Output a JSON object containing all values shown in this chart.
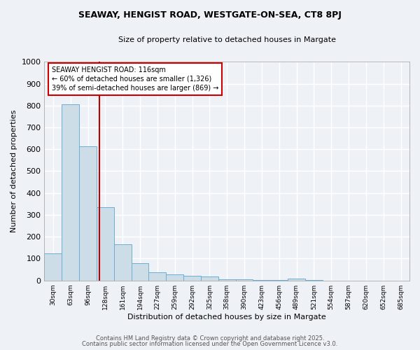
{
  "title1": "SEAWAY, HENGIST ROAD, WESTGATE-ON-SEA, CT8 8PJ",
  "title2": "Size of property relative to detached houses in Margate",
  "xlabel": "Distribution of detached houses by size in Margate",
  "ylabel": "Number of detached properties",
  "bar_color": "#ccdde8",
  "bar_edge_color": "#6baed6",
  "background_color": "#eef2f7",
  "grid_color": "#ffffff",
  "categories": [
    "30sqm",
    "63sqm",
    "96sqm",
    "128sqm",
    "161sqm",
    "194sqm",
    "227sqm",
    "259sqm",
    "292sqm",
    "325sqm",
    "358sqm",
    "390sqm",
    "423sqm",
    "456sqm",
    "489sqm",
    "521sqm",
    "554sqm",
    "587sqm",
    "620sqm",
    "652sqm",
    "685sqm"
  ],
  "values": [
    125,
    805,
    615,
    335,
    165,
    80,
    38,
    27,
    22,
    17,
    7,
    5,
    3,
    1,
    9,
    1,
    0,
    0,
    0,
    0,
    0
  ],
  "red_line_x": 2.67,
  "annotation_text": "SEAWAY HENGIST ROAD: 116sqm\n← 60% of detached houses are smaller (1,326)\n39% of semi-detached houses are larger (869) →",
  "annotation_box_color": "#ffffff",
  "annotation_box_edge": "#cc0000",
  "ylim": [
    0,
    1000
  ],
  "yticks": [
    0,
    100,
    200,
    300,
    400,
    500,
    600,
    700,
    800,
    900,
    1000
  ],
  "footnote1": "Contains HM Land Registry data © Crown copyright and database right 2025.",
  "footnote2": "Contains public sector information licensed under the Open Government Licence v3.0."
}
